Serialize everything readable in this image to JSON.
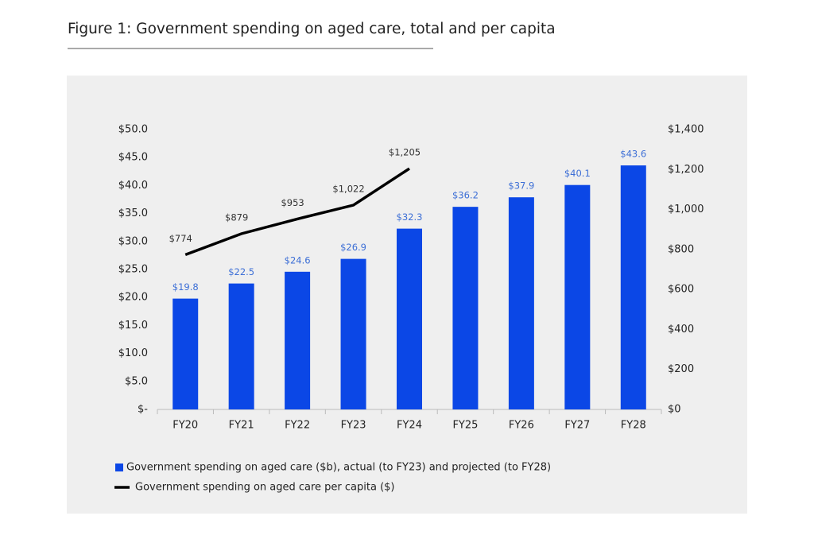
{
  "chart_data": {
    "type": "bar",
    "title": "Figure 1: Government spending on aged care, total and per capita",
    "categories": [
      "FY20",
      "FY21",
      "FY22",
      "FY23",
      "FY24",
      "FY25",
      "FY26",
      "FY27",
      "FY28"
    ],
    "series": [
      {
        "name": "Government spending on aged care ($b), actual (to FY23) and projected (to FY28)",
        "type": "bar",
        "color": "#0b47e6",
        "values": [
          19.8,
          22.5,
          24.6,
          26.9,
          32.3,
          36.2,
          37.9,
          40.1,
          43.6
        ],
        "value_labels": [
          "$19.8",
          "$22.5",
          "$24.6",
          "$26.9",
          "$32.3",
          "$36.2",
          "$37.9",
          "$40.1",
          "$43.6"
        ]
      },
      {
        "name": "Government spending on aged care per capita ($)",
        "type": "line",
        "axis": "y2",
        "color": "#000000",
        "values": [
          774,
          879,
          953,
          1022,
          1205,
          null,
          null,
          null,
          null
        ],
        "value_labels": [
          "$774",
          "$879",
          "$953",
          "$1,022",
          "$1,205",
          null,
          null,
          null,
          null
        ]
      }
    ],
    "ylim": [
      0,
      50
    ],
    "yticks": [
      {
        "value": 0,
        "label": "$-"
      },
      {
        "value": 5,
        "label": "$5.0"
      },
      {
        "value": 10,
        "label": "$10.0"
      },
      {
        "value": 15,
        "label": "$15.0"
      },
      {
        "value": 20,
        "label": "$20.0"
      },
      {
        "value": 25,
        "label": "$25.0"
      },
      {
        "value": 30,
        "label": "$30.0"
      },
      {
        "value": 35,
        "label": "$35.0"
      },
      {
        "value": 40,
        "label": "$40.0"
      },
      {
        "value": 45,
        "label": "$45.0"
      },
      {
        "value": 50,
        "label": "$50.0"
      }
    ],
    "y2lim": [
      0,
      1400
    ],
    "y2ticks": [
      {
        "value": 0,
        "label": "$0"
      },
      {
        "value": 200,
        "label": "$200"
      },
      {
        "value": 400,
        "label": "$400"
      },
      {
        "value": 600,
        "label": "$600"
      },
      {
        "value": 800,
        "label": "$800"
      },
      {
        "value": 1000,
        "label": "$1,000"
      },
      {
        "value": 1200,
        "label": "$1,200"
      },
      {
        "value": 1400,
        "label": "$1,400"
      }
    ],
    "legend": "bottom-left",
    "grid": false
  }
}
